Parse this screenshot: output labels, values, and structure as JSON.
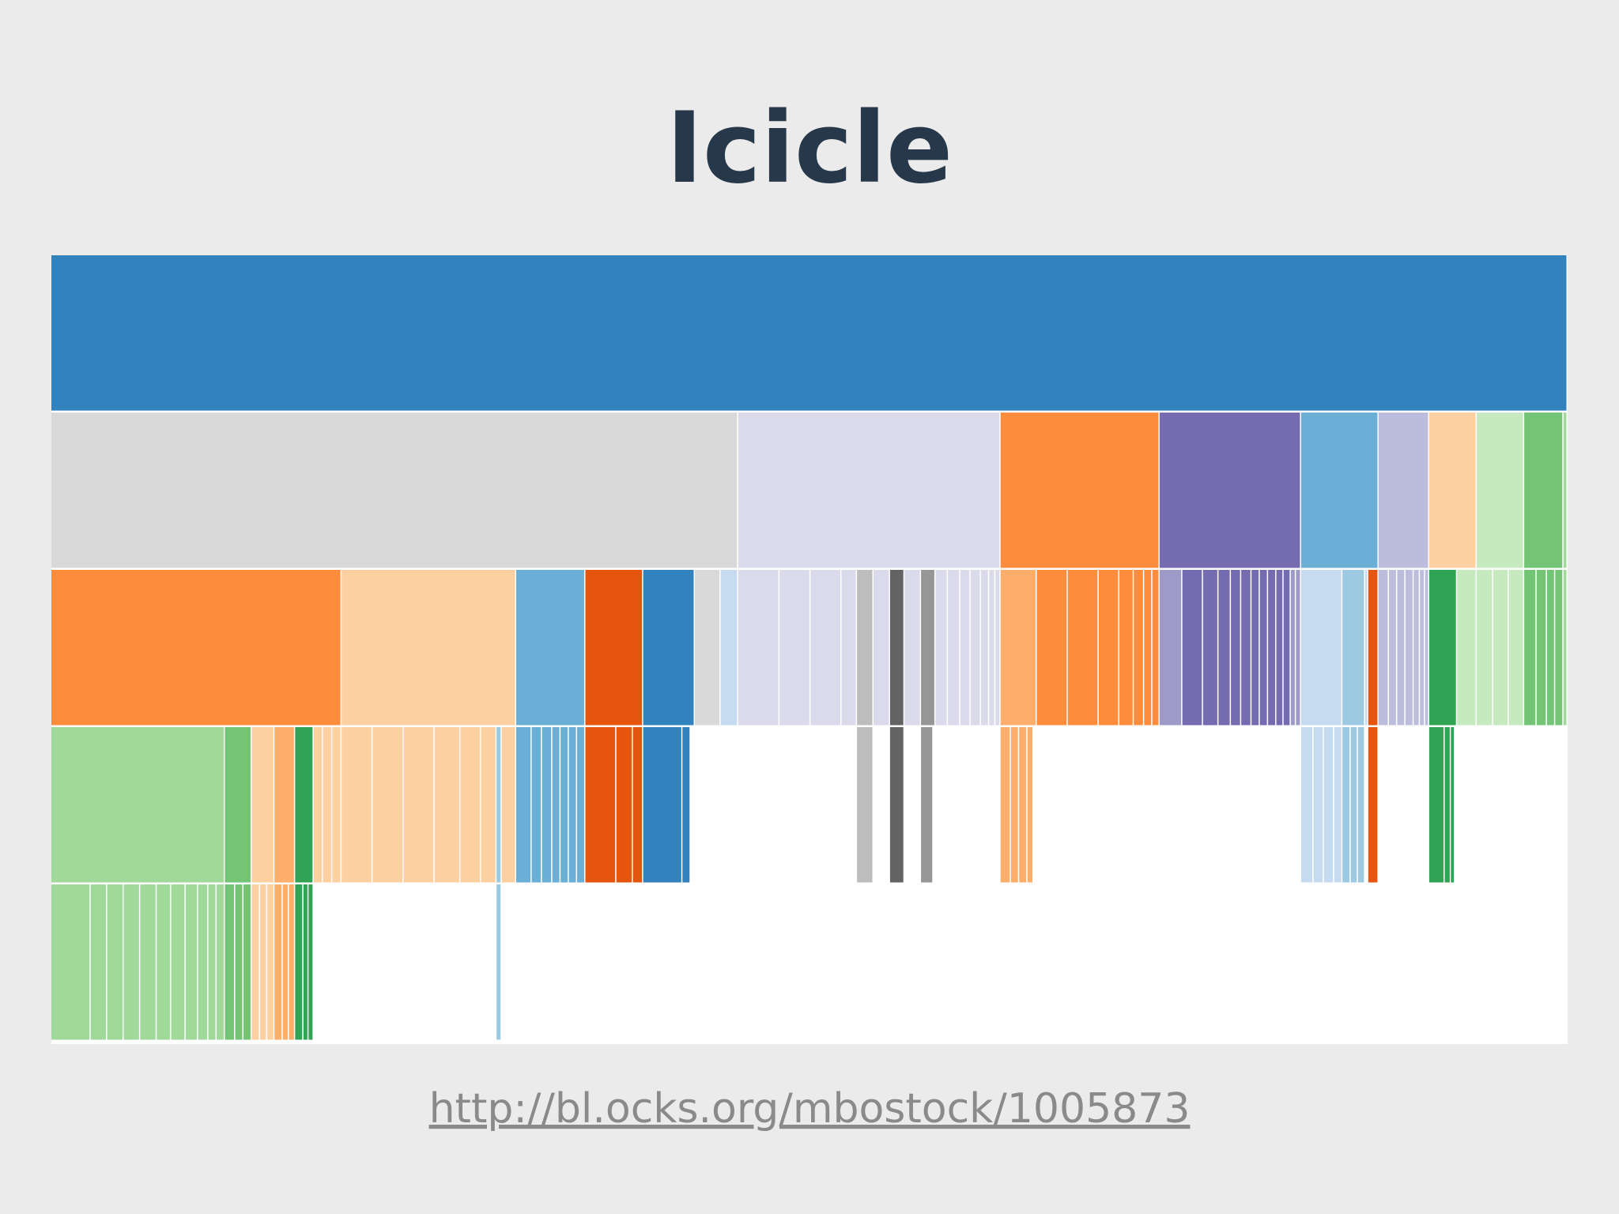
{
  "chart_data": {
    "type": "icicle",
    "title": "Icicle",
    "root": {
      "value": 1468,
      "color": "#3182bd",
      "children": [
        {
          "value": 665,
          "color": "#d9d9d9",
          "children": [
            {
              "value": 281,
              "color": "#fd8d3c",
              "children": [
                {
                  "value": 168,
                  "color": "#a1d99b",
                  "children": [
                    {
                      "value": 38,
                      "color": "#a1d99b"
                    },
                    {
                      "value": 16,
                      "color": "#a1d99b"
                    },
                    {
                      "value": 16,
                      "color": "#a1d99b"
                    },
                    {
                      "value": 16,
                      "color": "#a1d99b"
                    },
                    {
                      "value": 16,
                      "color": "#a1d99b"
                    },
                    {
                      "value": 14,
                      "color": "#a1d99b"
                    },
                    {
                      "value": 14,
                      "color": "#a1d99b"
                    },
                    {
                      "value": 12,
                      "color": "#a1d99b"
                    },
                    {
                      "value": 10,
                      "color": "#a1d99b"
                    },
                    {
                      "value": 8,
                      "color": "#a1d99b"
                    },
                    {
                      "value": 8,
                      "color": "#a1d99b"
                    }
                  ]
                },
                {
                  "value": 26,
                  "color": "#74c476",
                  "children": [
                    {
                      "value": 10,
                      "color": "#74c476"
                    },
                    {
                      "value": 8,
                      "color": "#74c476"
                    },
                    {
                      "value": 8,
                      "color": "#74c476"
                    }
                  ]
                },
                {
                  "value": 22,
                  "color": "#fdd0a2",
                  "children": [
                    {
                      "value": 8,
                      "color": "#fdd0a2"
                    },
                    {
                      "value": 7,
                      "color": "#fdd0a2"
                    },
                    {
                      "value": 7,
                      "color": "#fdd0a2"
                    }
                  ]
                },
                {
                  "value": 20,
                  "color": "#fdae6b",
                  "children": [
                    {
                      "value": 8,
                      "color": "#fdae6b"
                    },
                    {
                      "value": 6,
                      "color": "#fdae6b"
                    },
                    {
                      "value": 6,
                      "color": "#fdae6b"
                    }
                  ]
                },
                {
                  "value": 18,
                  "color": "#31a354",
                  "children": [
                    {
                      "value": 8,
                      "color": "#31a354"
                    },
                    {
                      "value": 5,
                      "color": "#31a354"
                    },
                    {
                      "value": 5,
                      "color": "#31a354"
                    }
                  ]
                },
                {
                  "value": 9,
                  "color": "#fdd0a2"
                },
                {
                  "value": 9,
                  "color": "#fdd0a2"
                },
                {
                  "value": 9,
                  "color": "#fdd0a2"
                }
              ]
            },
            {
              "value": 169,
              "color": "#fdd0a2",
              "children": [
                {
                  "value": 30,
                  "color": "#fdd0a2"
                },
                {
                  "value": 30,
                  "color": "#fdd0a2"
                },
                {
                  "value": 30,
                  "color": "#fdd0a2"
                },
                {
                  "value": 25,
                  "color": "#fdd0a2"
                },
                {
                  "value": 20,
                  "color": "#fdd0a2"
                },
                {
                  "value": 15,
                  "color": "#fdd0a2"
                },
                {
                  "value": 5,
                  "color": "#9ecae1",
                  "children": [
                    {
                      "value": 5,
                      "color": "#9ecae1"
                    }
                  ]
                },
                {
                  "value": 14,
                  "color": "#fdd0a2"
                }
              ]
            },
            {
              "value": 67,
              "color": "#6baed6",
              "children": [
                {
                  "value": 15,
                  "color": "#6baed6"
                },
                {
                  "value": 10,
                  "color": "#6baed6"
                },
                {
                  "value": 10,
                  "color": "#6baed6"
                },
                {
                  "value": 8,
                  "color": "#6baed6"
                },
                {
                  "value": 8,
                  "color": "#6baed6"
                },
                {
                  "value": 8,
                  "color": "#6baed6"
                },
                {
                  "value": 8,
                  "color": "#6baed6"
                }
              ]
            },
            {
              "value": 56,
              "color": "#e6550d",
              "children": [
                {
                  "value": 30,
                  "color": "#e6550d"
                },
                {
                  "value": 16,
                  "color": "#e6550d"
                },
                {
                  "value": 10,
                  "color": "#e6550d"
                }
              ]
            },
            {
              "value": 50,
              "color": "#3182bd",
              "children": [
                {
                  "value": 38,
                  "color": "#3182bd"
                },
                {
                  "value": 8,
                  "color": "#3182bd"
                }
              ]
            },
            {
              "value": 25,
              "color": "#d9d9d9"
            },
            {
              "value": 17,
              "color": "#c6dbef"
            }
          ]
        },
        {
          "value": 254,
          "color": "#dadaeb",
          "children": [
            {
              "value": 40,
              "color": "#dadaeb"
            },
            {
              "value": 30,
              "color": "#dadaeb"
            },
            {
              "value": 30,
              "color": "#dadaeb"
            },
            {
              "value": 15,
              "color": "#dadaeb"
            },
            {
              "value": 16,
              "color": "#bdbdbd",
              "children": [
                {
                  "value": 16,
                  "color": "#bdbdbd"
                }
              ]
            },
            {
              "value": 16,
              "color": "#dadaeb"
            },
            {
              "value": 14,
              "color": "#636363",
              "children": [
                {
                  "value": 14,
                  "color": "#636363"
                }
              ]
            },
            {
              "value": 16,
              "color": "#dadaeb"
            },
            {
              "value": 14,
              "color": "#969696",
              "children": [
                {
                  "value": 12,
                  "color": "#969696"
                }
              ]
            },
            {
              "value": 12,
              "color": "#dadaeb"
            },
            {
              "value": 12,
              "color": "#dadaeb"
            },
            {
              "value": 10,
              "color": "#dadaeb"
            },
            {
              "value": 10,
              "color": "#dadaeb"
            },
            {
              "value": 8,
              "color": "#dadaeb"
            },
            {
              "value": 6,
              "color": "#dadaeb"
            },
            {
              "value": 5,
              "color": "#dadaeb"
            }
          ]
        },
        {
          "value": 154,
          "color": "#fd8d3c",
          "children": [
            {
              "value": 35,
              "color": "#fdae6b",
              "children": [
                {
                  "value": 10,
                  "color": "#fdae6b"
                },
                {
                  "value": 8,
                  "color": "#fdae6b"
                },
                {
                  "value": 8,
                  "color": "#fdae6b"
                },
                {
                  "value": 6,
                  "color": "#fdae6b"
                }
              ]
            },
            {
              "value": 30,
              "color": "#fd8d3c"
            },
            {
              "value": 30,
              "color": "#fd8d3c"
            },
            {
              "value": 20,
              "color": "#fd8d3c"
            },
            {
              "value": 14,
              "color": "#fd8d3c"
            },
            {
              "value": 10,
              "color": "#fd8d3c"
            },
            {
              "value": 8,
              "color": "#fd8d3c"
            },
            {
              "value": 7,
              "color": "#fd8d3c"
            }
          ]
        },
        {
          "value": 137,
          "color": "#756bb1",
          "children": [
            {
              "value": 22,
              "color": "#9e9ac8"
            },
            {
              "value": 20,
              "color": "#756bb1"
            },
            {
              "value": 15,
              "color": "#756bb1"
            },
            {
              "value": 12,
              "color": "#756bb1"
            },
            {
              "value": 10,
              "color": "#756bb1"
            },
            {
              "value": 10,
              "color": "#756bb1"
            },
            {
              "value": 8,
              "color": "#756bb1"
            },
            {
              "value": 8,
              "color": "#756bb1"
            },
            {
              "value": 8,
              "color": "#756bb1"
            },
            {
              "value": 7,
              "color": "#756bb1"
            },
            {
              "value": 7,
              "color": "#756bb1"
            },
            {
              "value": 5,
              "color": "#9e9ac8"
            },
            {
              "value": 5,
              "color": "#9e9ac8"
            }
          ]
        },
        {
          "value": 75,
          "color": "#6baed6",
          "children": [
            {
              "value": 40,
              "color": "#c6dbef",
              "children": [
                {
                  "value": 12,
                  "color": "#c6dbef"
                },
                {
                  "value": 10,
                  "color": "#c6dbef"
                },
                {
                  "value": 10,
                  "color": "#c6dbef"
                },
                {
                  "value": 8,
                  "color": "#c6dbef"
                }
              ]
            },
            {
              "value": 22,
              "color": "#9ecae1",
              "children": [
                {
                  "value": 8,
                  "color": "#9ecae1"
                },
                {
                  "value": 7,
                  "color": "#9ecae1"
                },
                {
                  "value": 7,
                  "color": "#9ecae1"
                }
              ]
            },
            {
              "value": 3,
              "color": "#c6dbef"
            },
            {
              "value": 10,
              "color": "#e6550d",
              "children": [
                {
                  "value": 10,
                  "color": "#e6550d"
                }
              ]
            }
          ]
        },
        {
          "value": 49,
          "color": "#bcbddc",
          "children": [
            {
              "value": 10,
              "color": "#bcbddc"
            },
            {
              "value": 8,
              "color": "#bcbddc"
            },
            {
              "value": 8,
              "color": "#bcbddc"
            },
            {
              "value": 8,
              "color": "#bcbddc"
            },
            {
              "value": 6,
              "color": "#bcbddc"
            },
            {
              "value": 5,
              "color": "#bcbddc"
            },
            {
              "value": 4,
              "color": "#bcbddc"
            }
          ]
        },
        {
          "value": 46,
          "color": "#fdd0a2",
          "children": [
            {
              "value": 27,
              "color": "#31a354",
              "children": [
                {
                  "value": 15,
                  "color": "#31a354"
                },
                {
                  "value": 6,
                  "color": "#31a354"
                },
                {
                  "value": 4,
                  "color": "#31a354"
                }
              ]
            },
            {
              "value": 19,
              "color": "#c7e9c0"
            }
          ]
        },
        {
          "value": 46,
          "color": "#c7e9c0",
          "children": [
            {
              "value": 16,
              "color": "#c7e9c0"
            },
            {
              "value": 15,
              "color": "#c7e9c0"
            },
            {
              "value": 15,
              "color": "#c7e9c0"
            }
          ]
        },
        {
          "value": 38,
          "color": "#74c476",
          "children": [
            {
              "value": 12,
              "color": "#74c476"
            },
            {
              "value": 10,
              "color": "#74c476"
            },
            {
              "value": 8,
              "color": "#74c476"
            },
            {
              "value": 8,
              "color": "#74c476"
            }
          ]
        },
        {
          "value": 4,
          "color": "#a1d99b",
          "children": [
            {
              "value": 4,
              "color": "#a1d99b"
            }
          ]
        }
      ]
    }
  },
  "footer": {
    "link": "http://bl.ocks.org/mbostock/1005873"
  }
}
